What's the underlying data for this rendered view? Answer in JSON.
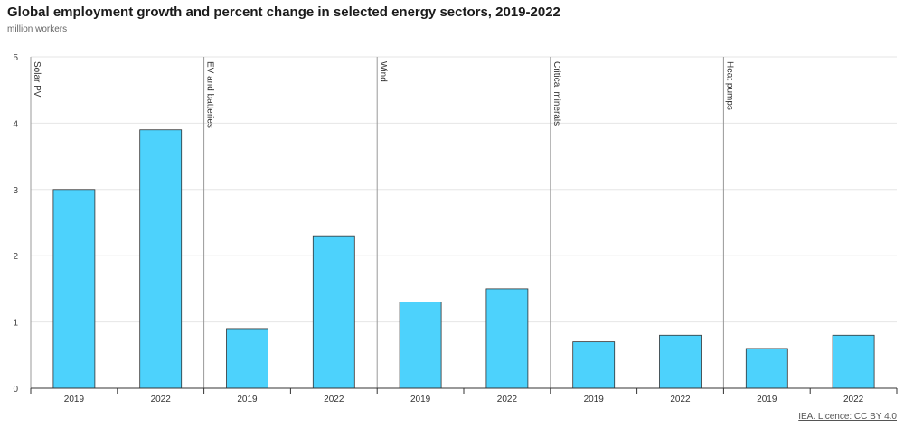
{
  "title": "Global employment growth and percent change in selected energy sectors, 2019-2022",
  "subtitle": "million workers",
  "licence": "IEA. Licence: CC BY 4.0",
  "colors": {
    "bar": "#4dd2fc",
    "bar_edge": "#333333",
    "grid": "#e6e6e6",
    "divider": "#999999",
    "axis": "#333333"
  },
  "chart_data": {
    "type": "bar",
    "title": "Global employment growth and percent change in selected energy sectors, 2019-2022",
    "ylabel": "million workers",
    "ylim": [
      0,
      5
    ],
    "yticks": [
      0,
      1,
      2,
      3,
      4,
      5
    ],
    "grid": true,
    "groups": [
      {
        "name": "Solar PV",
        "categories": [
          "2019",
          "2022"
        ],
        "values": [
          3.0,
          3.9
        ]
      },
      {
        "name": "EV and batteries",
        "categories": [
          "2019",
          "2022"
        ],
        "values": [
          0.9,
          2.3
        ]
      },
      {
        "name": "Wind",
        "categories": [
          "2019",
          "2022"
        ],
        "values": [
          1.3,
          1.5
        ]
      },
      {
        "name": "Critical minerals",
        "categories": [
          "2019",
          "2022"
        ],
        "values": [
          0.7,
          0.8
        ]
      },
      {
        "name": "Heat pumps",
        "categories": [
          "2019",
          "2022"
        ],
        "values": [
          0.6,
          0.8
        ]
      }
    ]
  }
}
